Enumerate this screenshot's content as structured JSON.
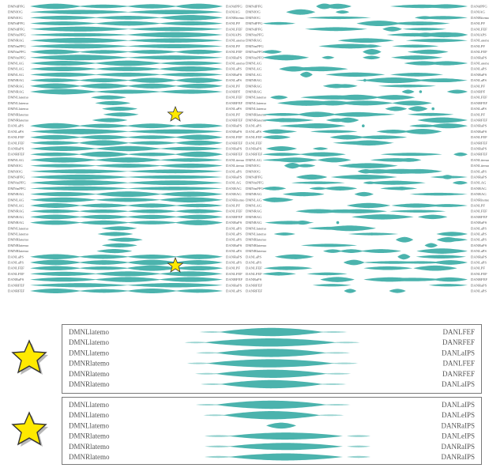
{
  "colors": {
    "band": "#4bb3ad",
    "band_light": "#8fd0cb",
    "text": "#555555",
    "border": "#7a7a7a",
    "star": "#ffe900",
    "star_stroke": "#333333"
  },
  "icons": {
    "star": "star-icon"
  },
  "left_panel": {
    "rows": [
      {
        "left": "DMNdPFG",
        "right": "DANdPFG"
      },
      {
        "left": "DMNlOG",
        "right": "DANlAG"
      },
      {
        "left": "DMNlOG",
        "right": "DANRitemo"
      },
      {
        "left": "DMNdPFG",
        "right": "DANLPF"
      },
      {
        "left": "DMNdPFG",
        "right": "DANLFEF"
      },
      {
        "left": "DMNmPFG",
        "right": "DANlAPS"
      },
      {
        "left": "DMNRAG",
        "right": "DANLatemo"
      },
      {
        "left": "DMNmPFG",
        "right": "DANLPF"
      },
      {
        "left": "DMNmPFG",
        "right": "DANLFEF"
      },
      {
        "left": "DMNmPFG",
        "right": "DANRaPS"
      },
      {
        "left": "DMNLAG",
        "right": "DANLatemo"
      },
      {
        "left": "DMNLAG",
        "right": "DANLaPS"
      },
      {
        "left": "DMNLAG",
        "right": "DANRaPS"
      },
      {
        "left": "DMNRAG",
        "right": "DANLaPS"
      },
      {
        "left": "DMNRAG",
        "right": "DANLPF"
      },
      {
        "left": "DMNRAG",
        "right": "DANRPF"
      },
      {
        "left": "DMNLlatemo",
        "right": "DANLFEF"
      },
      {
        "left": "DMNLlatemo",
        "right": "DANRFEF"
      },
      {
        "left": "DMNLlatemo",
        "right": "DANLaPS"
      },
      {
        "left": "DMNRlatemo",
        "right": "DANLPF"
      },
      {
        "left": "DMNRlatemo",
        "right": "DANRFEF"
      },
      {
        "left": "DANLaPS",
        "right": "DANRaPS"
      },
      {
        "left": "DANLaPS",
        "right": "DANRaPS"
      },
      {
        "left": "DANLFEF",
        "right": "DANLFEF"
      },
      {
        "left": "DANLFEF",
        "right": "DANRFEF"
      },
      {
        "left": "DANRaPS",
        "right": "DANRaPS"
      },
      {
        "left": "DANRFEF",
        "right": "DANRFEF"
      },
      {
        "left": "DMNLAG",
        "right": "DANLitemo"
      },
      {
        "left": "DMNlOG",
        "right": "DANLitemo"
      },
      {
        "left": "DMNlOG",
        "right": "DANLaPS"
      },
      {
        "left": "DMNdPFG",
        "right": "DANRaPS"
      },
      {
        "left": "DMNmPFG",
        "right": "DANLAG"
      },
      {
        "left": "DMNmPFG",
        "right": "DANRAG"
      },
      {
        "left": "DMNRAG",
        "right": "DANRAG"
      },
      {
        "left": "DMNLAG",
        "right": "DANRitemo"
      },
      {
        "left": "DMNLAG",
        "right": "DANLPF"
      },
      {
        "left": "DMNRAG",
        "right": "DANLFEF"
      },
      {
        "left": "DMNRAG",
        "right": "DANRFEF"
      },
      {
        "left": "DMNRAG",
        "right": "DANRaPS"
      },
      {
        "left": "DMNLlatemo",
        "right": "DANLaPS"
      },
      {
        "left": "DMNLlatemo",
        "right": "DANLaPS"
      },
      {
        "left": "DMNRlatemo",
        "right": "DANLaPS"
      },
      {
        "left": "DMNRlatemo",
        "right": "DANRaPS"
      },
      {
        "left": "DMNRlatemo",
        "right": "DANLaPS"
      },
      {
        "left": "DANLaPS",
        "right": "DANRaPS"
      },
      {
        "left": "DANLaPS",
        "right": "DANLaPS"
      },
      {
        "left": "DANLFEF",
        "right": "DANLPF"
      },
      {
        "left": "DANLFEF",
        "right": "DANLFEF"
      },
      {
        "left": "DANRaPS",
        "right": "DANRFEF"
      },
      {
        "left": "DANRFEF",
        "right": "DANRaPS"
      },
      {
        "left": "DANRFEF",
        "right": "DANLaPS"
      }
    ]
  },
  "right_panel": {
    "rows": [
      {
        "left": "DMNdPFG",
        "right": "DANdPFG"
      },
      {
        "left": "DMNlOG",
        "right": "DANlAG"
      },
      {
        "left": "DMNlOG",
        "right": "DANRitemo"
      },
      {
        "left": "DMNdPFG",
        "right": "DANLPF"
      },
      {
        "left": "DMNdPFG",
        "right": "DANLFEF"
      },
      {
        "left": "DMNmPFG",
        "right": "DANlAPS"
      },
      {
        "left": "DMNRAG",
        "right": "DANLatemo"
      },
      {
        "left": "DMNmPFG",
        "right": "DANLPF"
      },
      {
        "left": "DMNmPFG",
        "right": "DANLFEF"
      },
      {
        "left": "DMNmPFG",
        "right": "DANRaPS"
      },
      {
        "left": "DMNLAG",
        "right": "DANLatemo"
      },
      {
        "left": "DMNLAG",
        "right": "DANLaPS"
      },
      {
        "left": "DMNLAG",
        "right": "DANRaPS"
      },
      {
        "left": "DMNRAG",
        "right": "DANLaPS"
      },
      {
        "left": "DMNRAG",
        "right": "DANLPF"
      },
      {
        "left": "DMNRAG",
        "right": "DANRPF"
      },
      {
        "left": "DMNLlatemo",
        "right": "DANLFEF"
      },
      {
        "left": "DMNLlatemo",
        "right": "DANRFEF"
      },
      {
        "left": "DMNLlatemo",
        "right": "DANLaPS"
      },
      {
        "left": "DMNRlatemo",
        "right": "DANLPF"
      },
      {
        "left": "DMNRlatemo",
        "right": "DANRFEF"
      },
      {
        "left": "DANLaPS",
        "right": "DANRaPS"
      },
      {
        "left": "DANLaPS",
        "right": "DANRaPS"
      },
      {
        "left": "DANLFEF",
        "right": "DANLFEF"
      },
      {
        "left": "DANLFEF",
        "right": "DANRFEF"
      },
      {
        "left": "DANRaPS",
        "right": "DANRaPS"
      },
      {
        "left": "DANRFEF",
        "right": "DANRFEF"
      },
      {
        "left": "DMNLAG",
        "right": "DANLitemo"
      },
      {
        "left": "DMNlOG",
        "right": "DANLitemo"
      },
      {
        "left": "DMNlOG",
        "right": "DANLaPS"
      },
      {
        "left": "DMNdPFG",
        "right": "DANRaPS"
      },
      {
        "left": "DMNmPFG",
        "right": "DANLAG"
      },
      {
        "left": "DMNmPFG",
        "right": "DANRAG"
      },
      {
        "left": "DMNRAG",
        "right": "DANRAG"
      },
      {
        "left": "DMNLAG",
        "right": "DANRitemo"
      },
      {
        "left": "DMNLAG",
        "right": "DANLPF"
      },
      {
        "left": "DMNRAG",
        "right": "DANLFEF"
      },
      {
        "left": "DMNRAG",
        "right": "DANRFEF"
      },
      {
        "left": "DMNRAG",
        "right": "DANRaPS"
      },
      {
        "left": "DMNLlatemo",
        "right": "DANLaPS"
      },
      {
        "left": "DMNLlatemo",
        "right": "DANLaPS"
      },
      {
        "left": "DMNRlatemo",
        "right": "DANLaPS"
      },
      {
        "left": "DMNRlatemo",
        "right": "DANRaPS"
      },
      {
        "left": "DMNRlatemo",
        "right": "DANLaPS"
      },
      {
        "left": "DANLaPS",
        "right": "DANRaPS"
      },
      {
        "left": "DANLaPS",
        "right": "DANLaPS"
      },
      {
        "left": "DANLFEF",
        "right": "DANLPF"
      },
      {
        "left": "DANLFEF",
        "right": "DANLFEF"
      },
      {
        "left": "DANRaPS",
        "right": "DANRFEF"
      },
      {
        "left": "DANRFEF",
        "right": "DANRaPS"
      },
      {
        "left": "DANRFEF",
        "right": "DANLaPS"
      }
    ]
  },
  "inset_top": {
    "rows": [
      {
        "left": "DMNLlatemo",
        "right": "DANLFEF"
      },
      {
        "left": "DMNLlatemo",
        "right": "DANRFEF"
      },
      {
        "left": "DMNLlatemo",
        "right": "DANLaIPS"
      },
      {
        "left": "DMNRlatemo",
        "right": "DANLFEF"
      },
      {
        "left": "DMNRlatemo",
        "right": "DANRFEF"
      },
      {
        "left": "DMNRlatemo",
        "right": "DANLaIPS"
      }
    ]
  },
  "inset_bottom": {
    "rows": [
      {
        "left": "DMNLlatemo",
        "right": "DANLaIPS"
      },
      {
        "left": "DMNLlatemo",
        "right": "DANLeIPS"
      },
      {
        "left": "DMNLlatemo",
        "right": "DANRaIPS"
      },
      {
        "left": "DMNRlatemo",
        "right": "DANLeIPS"
      },
      {
        "left": "DMNRlatemo",
        "right": "DANRaIPS"
      },
      {
        "left": "DMNRlatemo",
        "right": "DANRaIPS"
      }
    ]
  }
}
